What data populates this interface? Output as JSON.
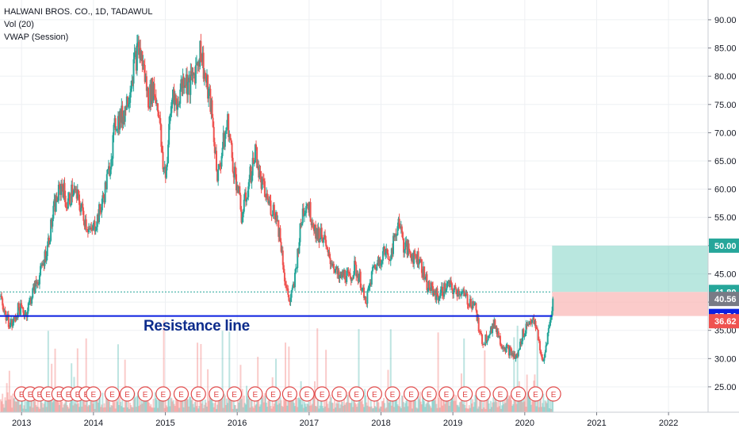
{
  "legend": {
    "symbol": "HALWANI BROS. CO., 1D, TADAWUL",
    "vol": "Vol (20)",
    "vwap": "VWAP (Session)"
  },
  "annotation": {
    "text": "Resistance line"
  },
  "colors": {
    "up": "#26a69a",
    "down": "#ef5350",
    "resistance": "#0a1fe0",
    "target_zone": "#7fd3c4",
    "stop_zone": "#f9b9b8",
    "earnings_marker": "#e04848"
  },
  "chart_data": {
    "type": "candlestick",
    "title": "HALWANI BROS. CO., 1D, TADAWUL",
    "x_ticks": [
      "2013",
      "2014",
      "2015",
      "2016",
      "2017",
      "2018",
      "2019",
      "2020",
      "2021",
      "2022"
    ],
    "y_ticks": [
      25,
      30,
      35,
      40,
      45,
      50,
      55,
      60,
      65,
      70,
      75,
      80,
      85,
      90
    ],
    "y_tick_labels": [
      "25.00",
      "30.00",
      "35.00",
      "40.00",
      "45.00",
      "50.00",
      "55.00",
      "60.00",
      "65.00",
      "70.00",
      "75.00",
      "80.00",
      "85.00",
      "90.00"
    ],
    "ylim": [
      20.5,
      93.5
    ],
    "xlim": [
      2012.7,
      2022.55
    ],
    "close_series": [
      [
        2012.7,
        41
      ],
      [
        2012.78,
        37
      ],
      [
        2012.86,
        36
      ],
      [
        2012.95,
        39
      ],
      [
        2013.05,
        38
      ],
      [
        2013.15,
        42
      ],
      [
        2013.25,
        45
      ],
      [
        2013.35,
        50
      ],
      [
        2013.45,
        57
      ],
      [
        2013.55,
        61
      ],
      [
        2013.62,
        57
      ],
      [
        2013.7,
        60
      ],
      [
        2013.78,
        58
      ],
      [
        2013.86,
        55
      ],
      [
        2013.95,
        52
      ],
      [
        2014.05,
        55
      ],
      [
        2014.12,
        58
      ],
      [
        2014.2,
        63
      ],
      [
        2014.3,
        72
      ],
      [
        2014.4,
        73
      ],
      [
        2014.48,
        77
      ],
      [
        2014.55,
        82
      ],
      [
        2014.62,
        85
      ],
      [
        2014.68,
        82
      ],
      [
        2014.75,
        76
      ],
      [
        2014.82,
        78
      ],
      [
        2014.9,
        74
      ],
      [
        2014.95,
        64
      ],
      [
        2015.0,
        63
      ],
      [
        2015.05,
        72
      ],
      [
        2015.1,
        78
      ],
      [
        2015.15,
        74
      ],
      [
        2015.2,
        78
      ],
      [
        2015.25,
        80
      ],
      [
        2015.32,
        78
      ],
      [
        2015.4,
        81
      ],
      [
        2015.48,
        85
      ],
      [
        2015.55,
        79
      ],
      [
        2015.62,
        75
      ],
      [
        2015.68,
        67
      ],
      [
        2015.72,
        62
      ],
      [
        2015.78,
        67
      ],
      [
        2015.86,
        72
      ],
      [
        2015.92,
        65
      ],
      [
        2016.0,
        60
      ],
      [
        2016.05,
        55
      ],
      [
        2016.1,
        58
      ],
      [
        2016.18,
        63
      ],
      [
        2016.25,
        67
      ],
      [
        2016.3,
        62
      ],
      [
        2016.38,
        59
      ],
      [
        2016.45,
        57
      ],
      [
        2016.52,
        56
      ],
      [
        2016.58,
        52
      ],
      [
        2016.62,
        48
      ],
      [
        2016.66,
        43
      ],
      [
        2016.72,
        40
      ],
      [
        2016.78,
        43
      ],
      [
        2016.84,
        50
      ],
      [
        2016.9,
        56
      ],
      [
        2016.96,
        58
      ],
      [
        2017.02,
        55
      ],
      [
        2017.1,
        52
      ],
      [
        2017.18,
        52
      ],
      [
        2017.25,
        48
      ],
      [
        2017.32,
        47
      ],
      [
        2017.4,
        44
      ],
      [
        2017.48,
        45
      ],
      [
        2017.55,
        44
      ],
      [
        2017.62,
        46
      ],
      [
        2017.7,
        44
      ],
      [
        2017.76,
        40
      ],
      [
        2017.82,
        42
      ],
      [
        2017.88,
        46
      ],
      [
        2017.95,
        47
      ],
      [
        2018.02,
        49
      ],
      [
        2018.1,
        48
      ],
      [
        2018.18,
        51
      ],
      [
        2018.24,
        55
      ],
      [
        2018.3,
        50
      ],
      [
        2018.38,
        49
      ],
      [
        2018.45,
        48
      ],
      [
        2018.52,
        48
      ],
      [
        2018.58,
        45
      ],
      [
        2018.64,
        43
      ],
      [
        2018.7,
        42
      ],
      [
        2018.78,
        41
      ],
      [
        2018.85,
        42
      ],
      [
        2018.92,
        43
      ],
      [
        2019.0,
        42
      ],
      [
        2019.08,
        42
      ],
      [
        2019.15,
        41
      ],
      [
        2019.22,
        40
      ],
      [
        2019.28,
        40
      ],
      [
        2019.32,
        38
      ],
      [
        2019.36,
        34
      ],
      [
        2019.42,
        33
      ],
      [
        2019.5,
        35
      ],
      [
        2019.58,
        36
      ],
      [
        2019.65,
        33
      ],
      [
        2019.72,
        32
      ],
      [
        2019.8,
        31
      ],
      [
        2019.86,
        30
      ],
      [
        2019.9,
        31
      ],
      [
        2019.95,
        34
      ],
      [
        2020.02,
        36
      ],
      [
        2020.08,
        37
      ],
      [
        2020.12,
        36
      ],
      [
        2020.16,
        35
      ],
      [
        2020.2,
        32
      ],
      [
        2020.23,
        29
      ],
      [
        2020.26,
        30
      ],
      [
        2020.29,
        33
      ],
      [
        2020.32,
        35
      ],
      [
        2020.35,
        37
      ],
      [
        2020.38,
        40.56
      ]
    ],
    "resistance_level": 37.54,
    "dotted_level": 41.8,
    "target_zone": {
      "x_range": [
        2020.38,
        2022.55
      ],
      "y_range": [
        41.8,
        50.0
      ]
    },
    "stop_zone": {
      "x_range": [
        2020.38,
        2022.55
      ],
      "y_range": [
        37.54,
        41.8
      ]
    },
    "earnings_markers": [
      2013.0,
      2013.12,
      2013.25,
      2013.37,
      2013.52,
      2013.65,
      2013.78,
      2013.9,
      2014.0,
      2014.26,
      2014.47,
      2014.72,
      2014.97,
      2015.22,
      2015.46,
      2015.71,
      2015.96,
      2016.25,
      2016.5,
      2016.73,
      2016.97,
      2017.18,
      2017.42,
      2017.66,
      2017.91,
      2018.16,
      2018.42,
      2018.67,
      2018.91,
      2019.17,
      2019.42,
      2019.66,
      2019.91,
      2020.15,
      2020.4
    ],
    "earnings_label": "E",
    "price_tags": [
      {
        "value": "50.00",
        "level": 50.0,
        "color": "#26a69a"
      },
      {
        "value": "41.80",
        "level": 41.8,
        "color": "#26a69a"
      },
      {
        "value": "40.56",
        "level": 40.56,
        "color": "#787b86"
      },
      {
        "value": "37.54",
        "level": 37.54,
        "color": "#0a1fe0"
      },
      {
        "value": "36.62",
        "level": 36.62,
        "color": "#ef5350"
      }
    ]
  }
}
